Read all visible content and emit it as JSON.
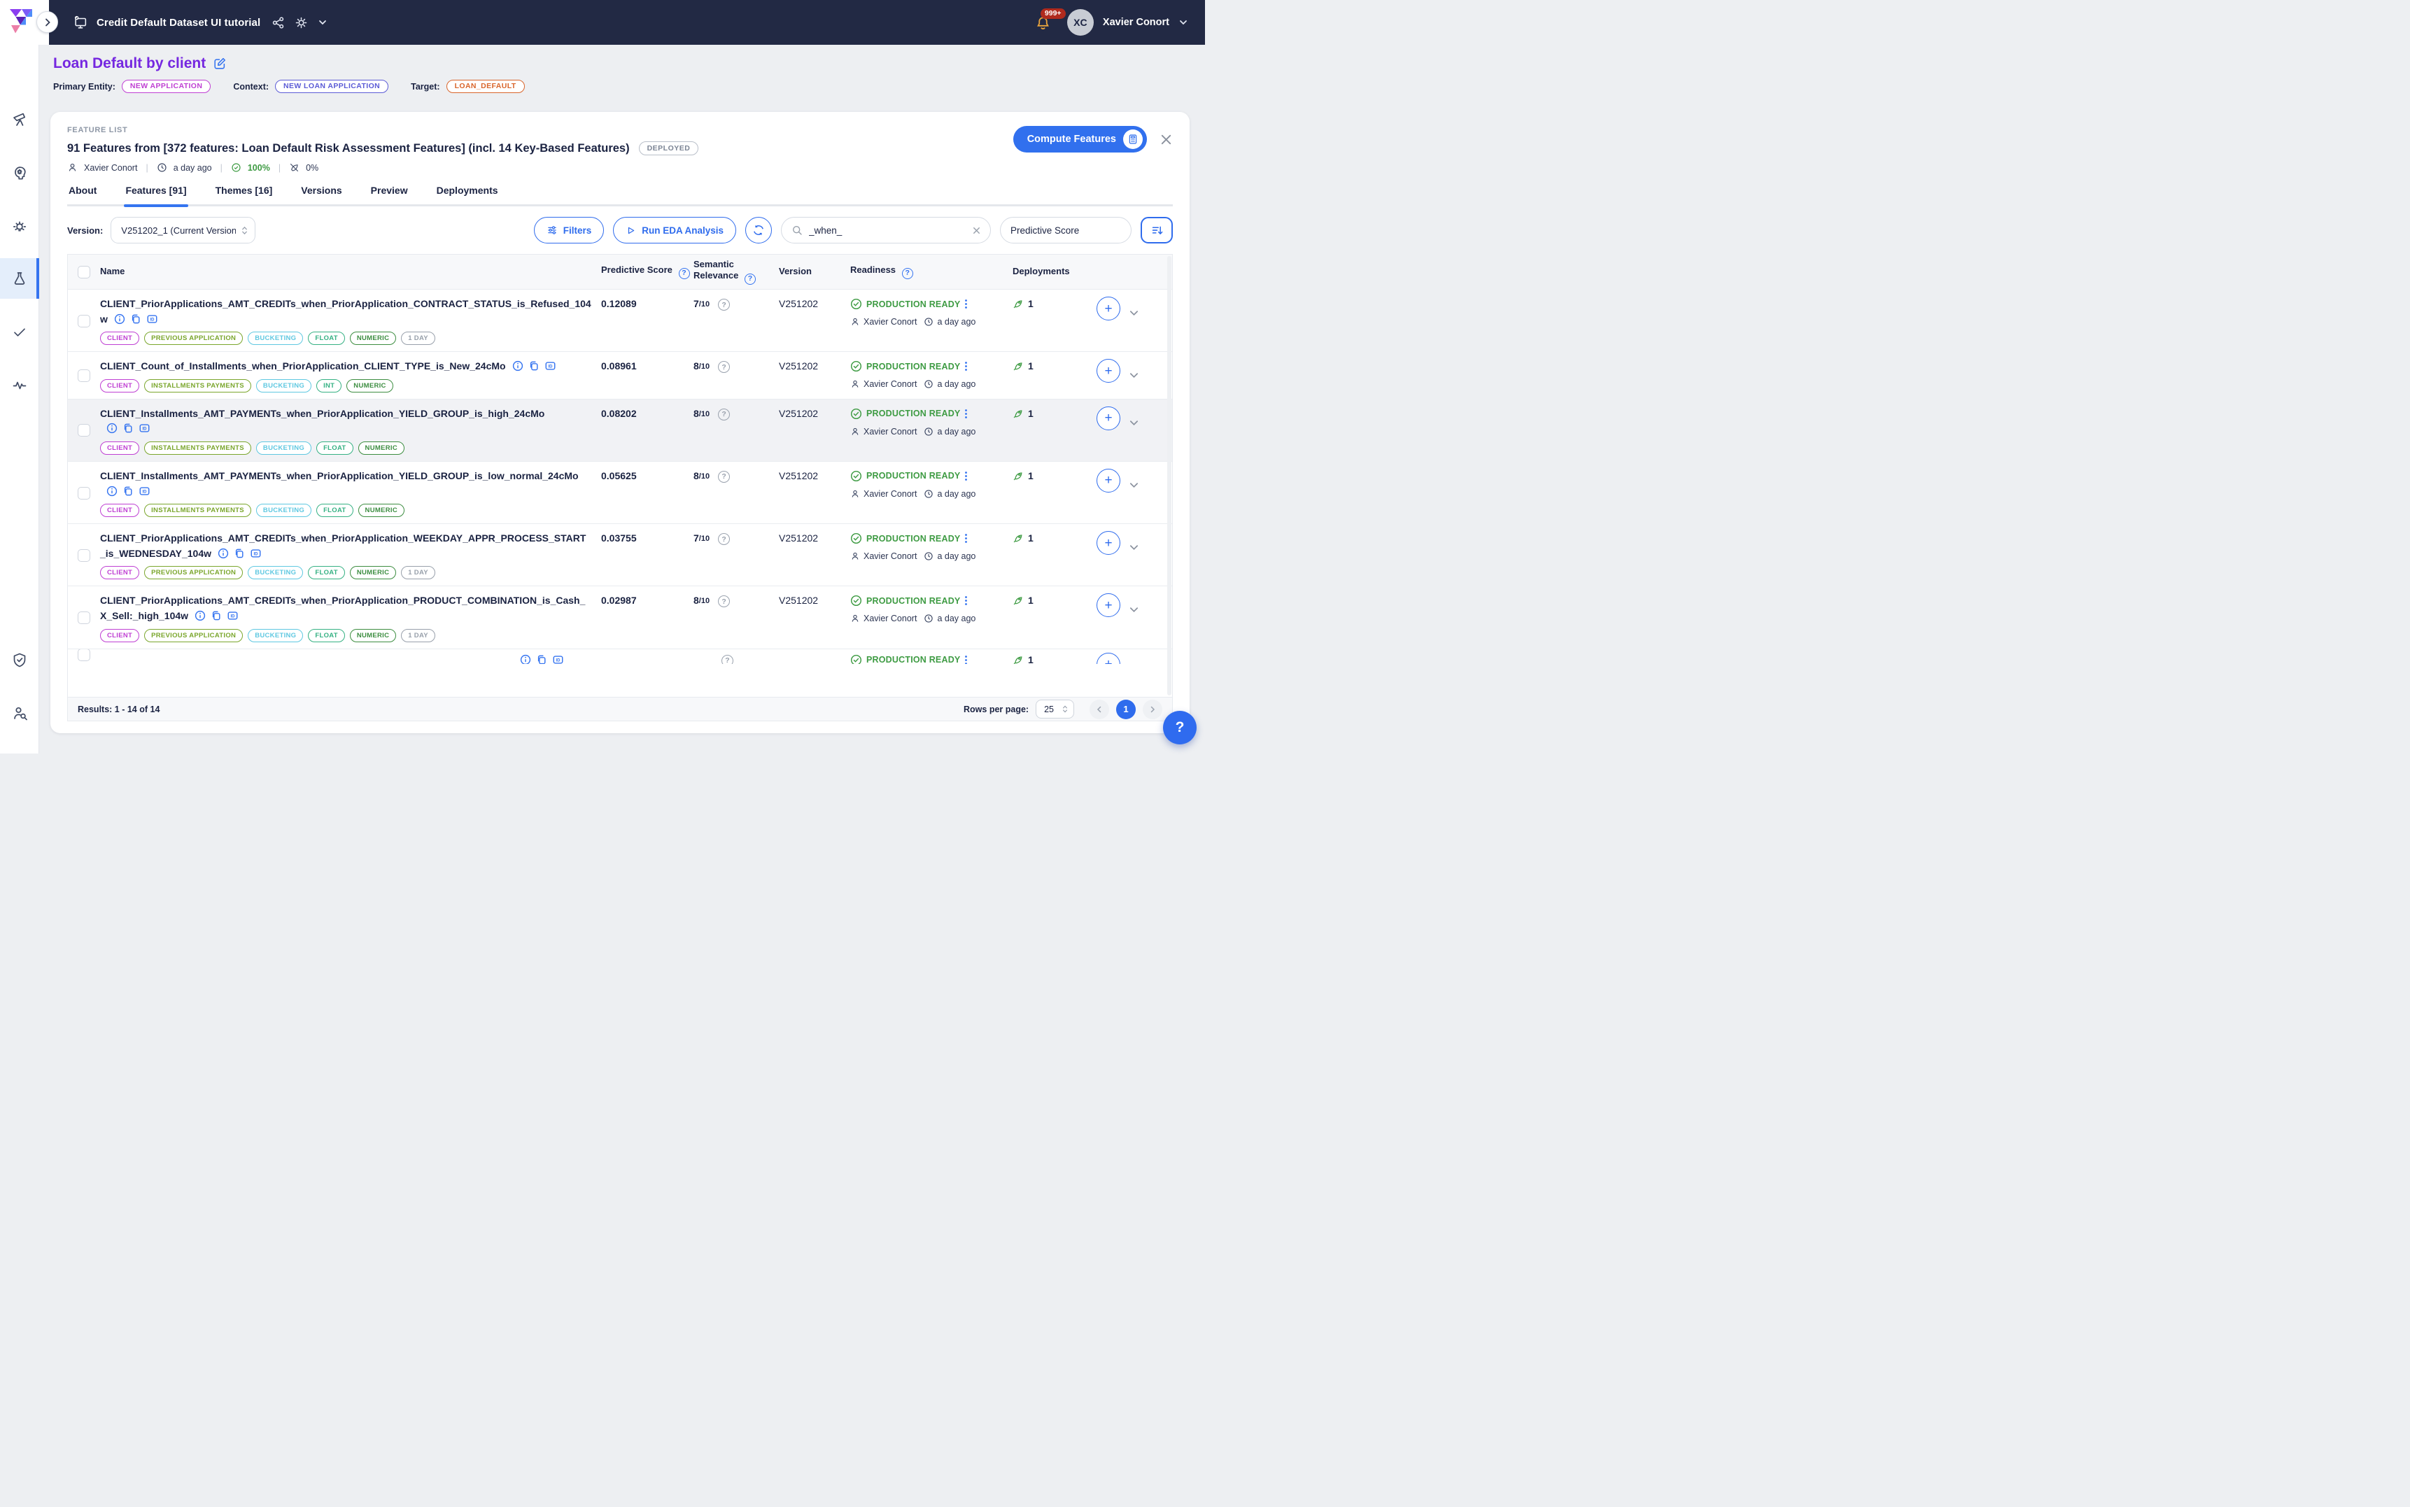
{
  "topbar": {
    "workspace": "Credit Default Dataset UI tutorial",
    "user": "Xavier Conort",
    "initials": "XC",
    "notifications": "999+"
  },
  "sidebar": {
    "icons": [
      "telescope-icon",
      "head-gear-icon",
      "lightbulb-icon",
      "flask-icon",
      "check-icon",
      "pulse-icon"
    ],
    "bottom_icons": [
      "shield-check-icon",
      "user-search-icon"
    ],
    "active_icon": "flask-icon"
  },
  "page": {
    "title": "Loan Default by client",
    "entity_label": "Primary Entity:",
    "entity": "NEW APPLICATION",
    "context_label": "Context:",
    "context": "NEW LOAN APPLICATION",
    "target_label": "Target:",
    "target": "LOAN_DEFAULT"
  },
  "panel": {
    "eyebrow": "FEATURE LIST",
    "title": "91 Features from [372 features: Loan Default Risk Assessment Features] (incl. 14 Key-Based Features)",
    "badge": "DEPLOYED",
    "author": "Xavier Conort",
    "updated": "a day ago",
    "pct_ready": "100%",
    "pct_deployed": "0%",
    "compute": "Compute Features"
  },
  "tabs": [
    {
      "label": "About",
      "active": false
    },
    {
      "label": "Features [91]",
      "active": true
    },
    {
      "label": "Themes [16]",
      "active": false
    },
    {
      "label": "Versions",
      "active": false
    },
    {
      "label": "Preview",
      "active": false
    },
    {
      "label": "Deployments",
      "active": false
    }
  ],
  "toolbar": {
    "version_label": "Version:",
    "version": "V251202_1 (Current Version",
    "filters": "Filters",
    "eda": "Run EDA Analysis",
    "search": "_when_",
    "sort": "Predictive Score"
  },
  "table": {
    "columns": [
      {
        "label": "Name",
        "help": false
      },
      {
        "label": "Predictive Score",
        "help": true
      },
      {
        "label": "Semantic Relevance",
        "help": true
      },
      {
        "label": "Version",
        "help": false
      },
      {
        "label": "Readiness",
        "help": true
      },
      {
        "label": "Deployments",
        "help": false
      }
    ],
    "relevance_suffix": "/10",
    "tag_colors": {
      "CLIENT": "#bf3fd3",
      "PREVIOUS APPLICATION": "#7aa62c",
      "INSTALLMENTS PAYMENTS": "#7aa62c",
      "BUCKETING": "#5fc8e1",
      "FLOAT": "#35b183",
      "INT": "#35b183",
      "NUMERIC": "#3c8d40",
      "1 DAY": "#98a0ab"
    },
    "rows": [
      {
        "name": "CLIENT_PriorApplications_AMT_CREDITs_when_PriorApplication_CONTRACT_STATUS_is_Refused_104w",
        "score": "0.12089",
        "relevance": "7",
        "version": "V251202",
        "readiness": "PRODUCTION READY",
        "author": "Xavier Conort",
        "updated": "a day ago",
        "deployments": "1",
        "tags": [
          "CLIENT",
          "PREVIOUS APPLICATION",
          "BUCKETING",
          "FLOAT",
          "NUMERIC",
          "1 DAY"
        ]
      },
      {
        "name": "CLIENT_Count_of_Installments_when_PriorApplication_CLIENT_TYPE_is_New_24cMo",
        "score": "0.08961",
        "relevance": "8",
        "version": "V251202",
        "readiness": "PRODUCTION READY",
        "author": "Xavier Conort",
        "updated": "a day ago",
        "deployments": "1",
        "tags": [
          "CLIENT",
          "INSTALLMENTS PAYMENTS",
          "BUCKETING",
          "INT",
          "NUMERIC"
        ]
      },
      {
        "name": "CLIENT_Installments_AMT_PAYMENTs_when_PriorApplication_YIELD_GROUP_is_high_24cMo",
        "score": "0.08202",
        "relevance": "8",
        "version": "V251202",
        "readiness": "PRODUCTION READY",
        "author": "Xavier Conort",
        "updated": "a day ago",
        "deployments": "1",
        "highlighted": true,
        "tags": [
          "CLIENT",
          "INSTALLMENTS PAYMENTS",
          "BUCKETING",
          "FLOAT",
          "NUMERIC"
        ]
      },
      {
        "name": "CLIENT_Installments_AMT_PAYMENTs_when_PriorApplication_YIELD_GROUP_is_low_normal_24cMo",
        "score": "0.05625",
        "relevance": "8",
        "version": "V251202",
        "readiness": "PRODUCTION READY",
        "author": "Xavier Conort",
        "updated": "a day ago",
        "deployments": "1",
        "tags": [
          "CLIENT",
          "INSTALLMENTS PAYMENTS",
          "BUCKETING",
          "FLOAT",
          "NUMERIC"
        ]
      },
      {
        "name": "CLIENT_PriorApplications_AMT_CREDITs_when_PriorApplication_WEEKDAY_APPR_PROCESS_START_is_WEDNESDAY_104w",
        "score": "0.03755",
        "relevance": "7",
        "version": "V251202",
        "readiness": "PRODUCTION READY",
        "author": "Xavier Conort",
        "updated": "a day ago",
        "deployments": "1",
        "tags": [
          "CLIENT",
          "PREVIOUS APPLICATION",
          "BUCKETING",
          "FLOAT",
          "NUMERIC",
          "1 DAY"
        ]
      },
      {
        "name": "CLIENT_PriorApplications_AMT_CREDITs_when_PriorApplication_PRODUCT_COMBINATION_is_Cash_X_Sell:_high_104w",
        "score": "0.02987",
        "relevance": "8",
        "version": "V251202",
        "readiness": "PRODUCTION READY",
        "author": "Xavier Conort",
        "updated": "a day ago",
        "deployments": "1",
        "tags": [
          "CLIENT",
          "PREVIOUS APPLICATION",
          "BUCKETING",
          "FLOAT",
          "NUMERIC",
          "1 DAY"
        ]
      },
      {
        "partial": true,
        "readiness": "PRODUCTION READY",
        "deployments": "1"
      }
    ]
  },
  "footer": {
    "results": "Results: 1 - 14 of 14",
    "rows_label": "Rows per page:",
    "rows_value": "25",
    "page": "1"
  },
  "fab": {
    "help_label": "?"
  }
}
